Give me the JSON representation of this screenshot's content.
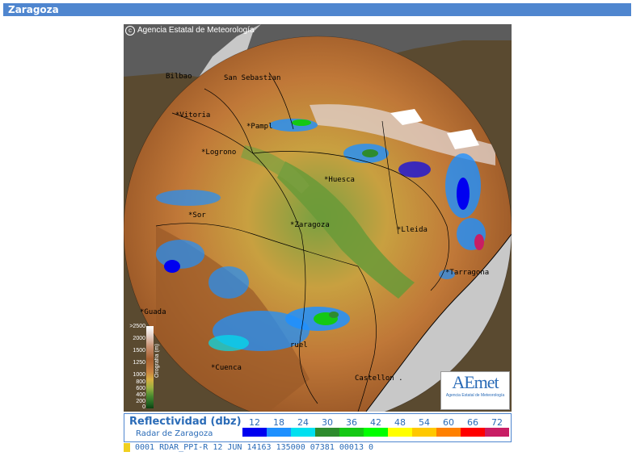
{
  "header": {
    "title": "Zaragoza"
  },
  "map": {
    "copyright": "Agencia Estatal de Meteorología",
    "cities": [
      {
        "id": "bilbao",
        "label": "Bilbao"
      },
      {
        "id": "san-sebastian",
        "label": "San Sebastian"
      },
      {
        "id": "vitoria",
        "label": "*Vitoria"
      },
      {
        "id": "pamplona",
        "label": "*Pampl"
      },
      {
        "id": "logrono",
        "label": "*Logrono"
      },
      {
        "id": "huesca",
        "label": "*Huesca"
      },
      {
        "id": "soria",
        "label": "*Sor"
      },
      {
        "id": "zaragoza",
        "label": "*Zaragoza"
      },
      {
        "id": "lleida",
        "label": "*Lleida"
      },
      {
        "id": "tarragona",
        "label": "*Tarragona"
      },
      {
        "id": "guadalajara",
        "label": "*Guada"
      },
      {
        "id": "teruel",
        "label": "ruel"
      },
      {
        "id": "cuenca",
        "label": "*Cuenca"
      },
      {
        "id": "castellon",
        "label": "Castellon ."
      }
    ],
    "orography": {
      "title": "Orografía (m)",
      "levels": [
        ">2500",
        "2000",
        "1500",
        "1250",
        "1000",
        "800",
        "600",
        "400",
        "200",
        "0"
      ]
    },
    "logo": {
      "text": "AEmet",
      "subtitle": "Agencia Estatal de Meteorología"
    }
  },
  "legend": {
    "title": "Reflectividad (dbz)",
    "subtitle": "Radar de Zaragoza",
    "scale": [
      {
        "value": "12",
        "color": "#0000f0"
      },
      {
        "value": "18",
        "color": "#1e90ff"
      },
      {
        "value": "24",
        "color": "#00e0f0"
      },
      {
        "value": "30",
        "color": "#2e8b2e"
      },
      {
        "value": "36",
        "color": "#14c814"
      },
      {
        "value": "42",
        "color": "#00ff00"
      },
      {
        "value": "48",
        "color": "#ffff00"
      },
      {
        "value": "54",
        "color": "#ffc800"
      },
      {
        "value": "60",
        "color": "#ff8000"
      },
      {
        "value": "66",
        "color": "#ff0000"
      },
      {
        "value": "72",
        "color": "#c81e64"
      }
    ]
  },
  "status": {
    "text": "0001 RDAR_PPI-R   12 JUN 14163 135000 07381 00013 0"
  }
}
